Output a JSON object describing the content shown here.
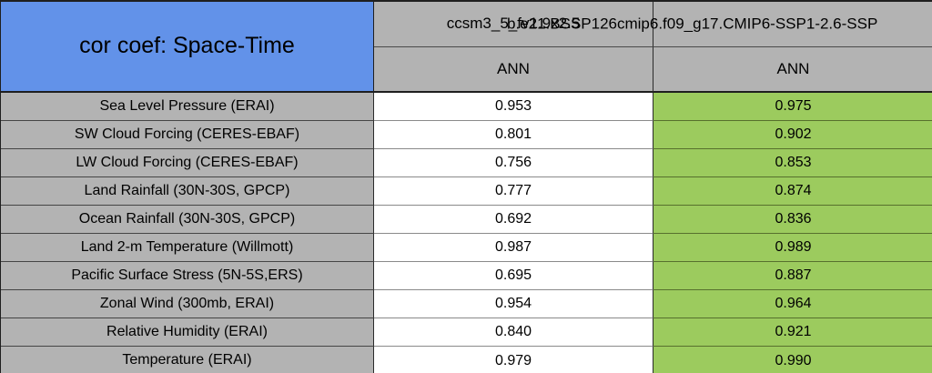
{
  "table": {
    "title": "cor coef: Space-Time",
    "col_headers": [
      "ccsm3_5_fv1.9x2.5",
      "b.e21.BSSP126cmip6.f09_g17.CMIP6-SSP1-2.6-SSP"
    ],
    "sub_headers": [
      "ANN",
      "ANN"
    ],
    "rows": [
      {
        "label": "Sea Level Pressure (ERAI)",
        "values": [
          "0.953",
          "0.975"
        ]
      },
      {
        "label": "SW Cloud Forcing (CERES-EBAF)",
        "values": [
          "0.801",
          "0.902"
        ]
      },
      {
        "label": "LW Cloud Forcing (CERES-EBAF)",
        "values": [
          "0.756",
          "0.853"
        ]
      },
      {
        "label": "Land Rainfall (30N-30S, GPCP)",
        "values": [
          "0.777",
          "0.874"
        ]
      },
      {
        "label": "Ocean Rainfall (30N-30S, GPCP)",
        "values": [
          "0.692",
          "0.836"
        ]
      },
      {
        "label": "Land 2-m Temperature (Willmott)",
        "values": [
          "0.987",
          "0.989"
        ]
      },
      {
        "label": "Pacific Surface Stress (5N-5S,ERS)",
        "values": [
          "0.695",
          "0.887"
        ]
      },
      {
        "label": "Zonal Wind (300mb, ERAI)",
        "values": [
          "0.954",
          "0.964"
        ]
      },
      {
        "label": "Relative Humidity (ERAI)",
        "values": [
          "0.840",
          "0.921"
        ]
      },
      {
        "label": "Temperature (ERAI)",
        "values": [
          "0.979",
          "0.990"
        ]
      }
    ],
    "colors": {
      "title_bg": "#6292e9",
      "header_bg": "#b3b3b3",
      "label_bg": "#b3b3b3",
      "model1_value_bg": "#ffffff",
      "model2_value_bg": "#9ccb5e"
    }
  },
  "chart_data": {
    "type": "table",
    "title": "cor coef: Space-Time",
    "row_labels": [
      "Sea Level Pressure (ERAI)",
      "SW Cloud Forcing (CERES-EBAF)",
      "LW Cloud Forcing (CERES-EBAF)",
      "Land Rainfall (30N-30S, GPCP)",
      "Ocean Rainfall (30N-30S, GPCP)",
      "Land 2-m Temperature (Willmott)",
      "Pacific Surface Stress (5N-5S,ERS)",
      "Zonal Wind (300mb, ERAI)",
      "Relative Humidity (ERAI)",
      "Temperature (ERAI)"
    ],
    "series": [
      {
        "name": "ccsm3_5_fv1.9x2.5",
        "season": "ANN",
        "values": [
          0.953,
          0.801,
          0.756,
          0.777,
          0.692,
          0.987,
          0.695,
          0.954,
          0.84,
          0.979
        ]
      },
      {
        "name": "b.e21.BSSP126cmip6.f09_g17.CMIP6-SSP1-2.6-SSP",
        "season": "ANN",
        "values": [
          0.975,
          0.902,
          0.853,
          0.874,
          0.836,
          0.989,
          0.887,
          0.964,
          0.921,
          0.99
        ]
      }
    ]
  }
}
